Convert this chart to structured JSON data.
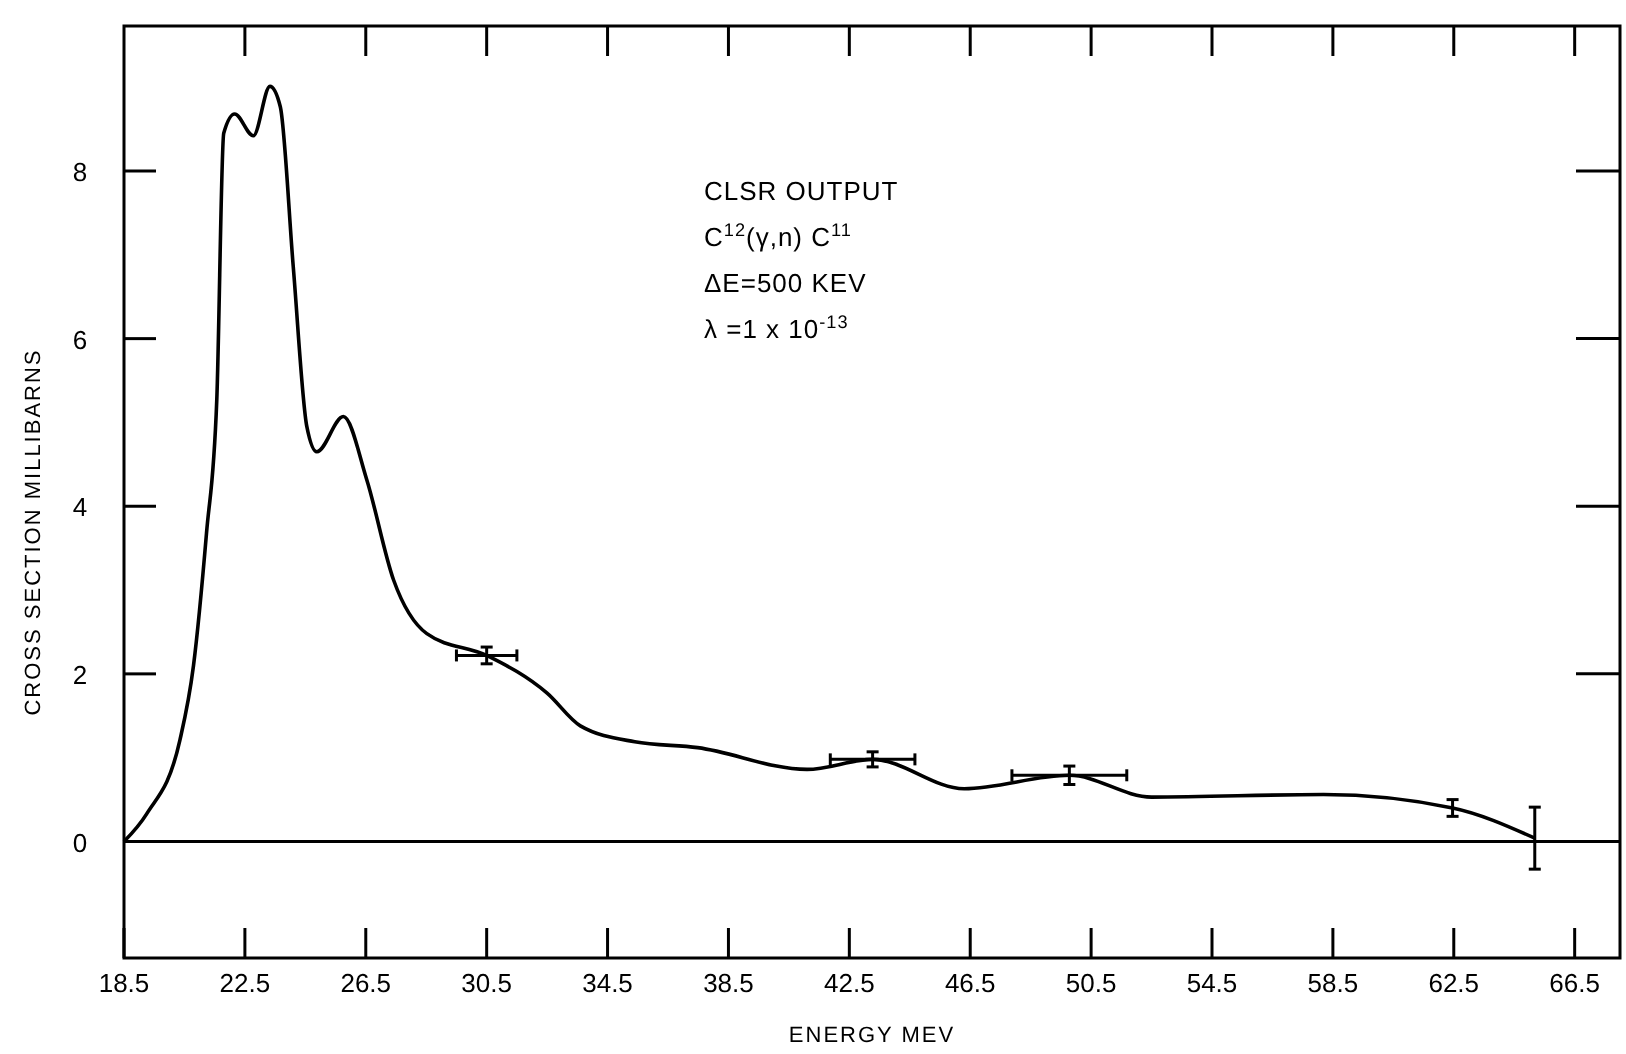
{
  "chart_data": {
    "type": "line",
    "xlabel": "ENERGY  MEV",
    "ylabel": "CROSS  SECTION  MILLIBARNS",
    "xlim": [
      18.5,
      68
    ],
    "ylim": [
      -1.39,
      9.73
    ],
    "xticks": [
      18.5,
      22.5,
      26.5,
      30.5,
      34.5,
      38.5,
      42.5,
      46.5,
      50.5,
      54.5,
      58.5,
      62.5,
      66.5
    ],
    "yticks": [
      0,
      2,
      4,
      6,
      8
    ],
    "grid": false,
    "marker": "none",
    "line_style": "solid",
    "ref_lines": [
      {
        "axis": "y",
        "value": 0,
        "color": "#000000"
      }
    ],
    "annotations": [
      "CLSR OUTPUT",
      "C$^{12}$(γ,n) C$^{11}$",
      "ΔE=500 KEV",
      "λ =1 x 10$^{-13}$"
    ],
    "series": [
      {
        "color": "#000000",
        "x": [
          18.5,
          19.25,
          20.35,
          20.8,
          21.23,
          21.57,
          21.8,
          22.16,
          22.78,
          23.33,
          23.67,
          24.1,
          24.55,
          24.88,
          25.76,
          26.53,
          27.42,
          28.52,
          30.5,
          32.5,
          33.6,
          35.4,
          37.48,
          41.1,
          43.27,
          46.3,
          49.78,
          52.5,
          58.19,
          62.46,
          65.18
        ],
        "values": [
          0,
          0.33,
          1.21,
          2.1,
          3.68,
          5.27,
          8.45,
          8.68,
          8.42,
          9.01,
          8.77,
          6.86,
          4.95,
          4.65,
          5.07,
          4.32,
          3.12,
          2.48,
          2.22,
          1.77,
          1.38,
          1.19,
          1.12,
          0.86,
          0.98,
          0.63,
          0.79,
          0.53,
          0.56,
          0.4,
          0.04
        ],
        "errors": [
          null,
          null,
          null,
          null,
          null,
          null,
          null,
          null,
          null,
          null,
          null,
          null,
          null,
          null,
          null,
          null,
          null,
          null,
          0.1,
          null,
          null,
          null,
          null,
          null,
          0.09,
          null,
          0.11,
          null,
          null,
          0.1,
          0.37
        ],
        "xerrors": [
          null,
          null,
          null,
          null,
          null,
          null,
          null,
          null,
          null,
          null,
          null,
          null,
          null,
          null,
          null,
          null,
          null,
          null,
          1,
          null,
          null,
          null,
          null,
          null,
          1.4,
          null,
          1.9,
          null,
          null,
          null,
          null
        ]
      }
    ]
  }
}
